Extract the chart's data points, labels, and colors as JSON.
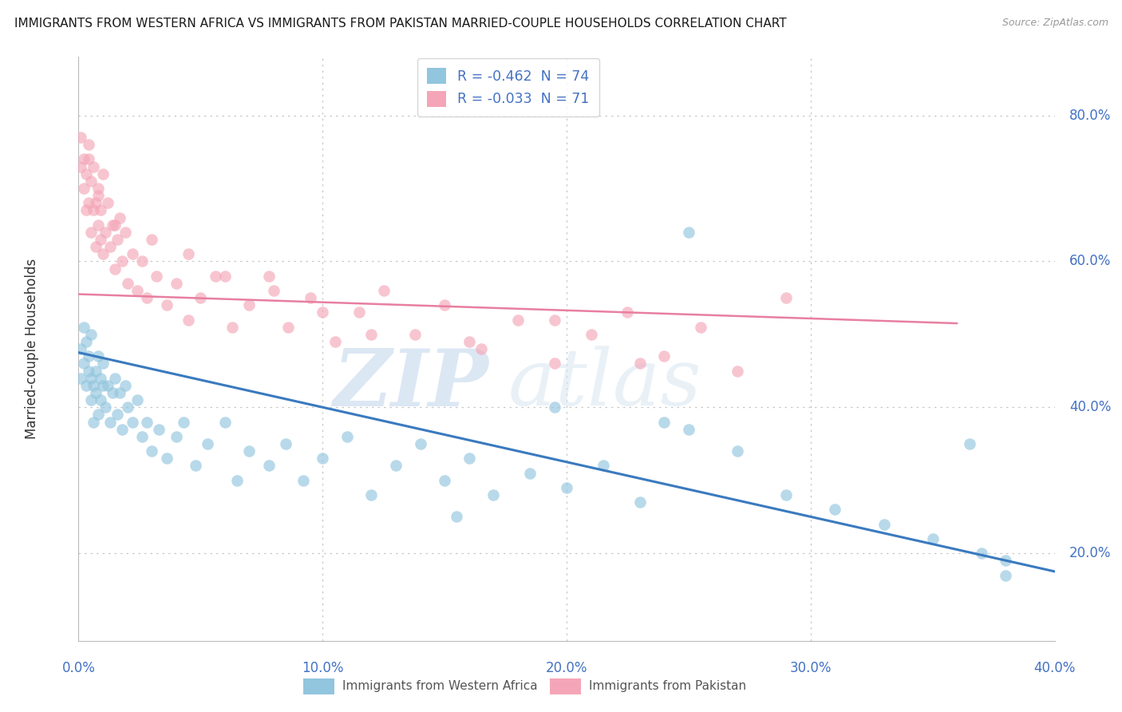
{
  "title": "IMMIGRANTS FROM WESTERN AFRICA VS IMMIGRANTS FROM PAKISTAN MARRIED-COUPLE HOUSEHOLDS CORRELATION CHART",
  "source": "Source: ZipAtlas.com",
  "xlabel_blue": "Immigrants from Western Africa",
  "xlabel_pink": "Immigrants from Pakistan",
  "ylabel": "Married-couple Households",
  "watermark_zip": "ZIP",
  "watermark_atlas": "atlas",
  "legend_blue_R": "-0.462",
  "legend_blue_N": "74",
  "legend_pink_R": "-0.033",
  "legend_pink_N": "71",
  "blue_color": "#92c5de",
  "pink_color": "#f4a6b8",
  "blue_line_color": "#3a7abf",
  "pink_line_color": "#e87fa0",
  "axis_color": "#4472c4",
  "text_color": "#333333",
  "grid_color": "#c8c8c8",
  "xmin": 0.0,
  "xmax": 0.4,
  "ymin": 0.08,
  "ymax": 0.88,
  "blue_x": [
    0.001,
    0.001,
    0.002,
    0.002,
    0.003,
    0.003,
    0.004,
    0.004,
    0.005,
    0.005,
    0.005,
    0.006,
    0.006,
    0.007,
    0.007,
    0.008,
    0.008,
    0.009,
    0.009,
    0.01,
    0.01,
    0.011,
    0.012,
    0.013,
    0.014,
    0.015,
    0.016,
    0.017,
    0.018,
    0.019,
    0.02,
    0.022,
    0.024,
    0.026,
    0.028,
    0.03,
    0.033,
    0.036,
    0.04,
    0.043,
    0.048,
    0.053,
    0.06,
    0.065,
    0.07,
    0.078,
    0.085,
    0.092,
    0.1,
    0.11,
    0.12,
    0.13,
    0.14,
    0.15,
    0.16,
    0.17,
    0.185,
    0.2,
    0.215,
    0.23,
    0.25,
    0.27,
    0.29,
    0.31,
    0.33,
    0.35,
    0.37,
    0.38,
    0.155,
    0.195,
    0.24,
    0.365,
    0.25,
    0.38
  ],
  "blue_y": [
    0.48,
    0.44,
    0.46,
    0.51,
    0.43,
    0.49,
    0.45,
    0.47,
    0.41,
    0.44,
    0.5,
    0.43,
    0.38,
    0.45,
    0.42,
    0.47,
    0.39,
    0.44,
    0.41,
    0.43,
    0.46,
    0.4,
    0.43,
    0.38,
    0.42,
    0.44,
    0.39,
    0.42,
    0.37,
    0.43,
    0.4,
    0.38,
    0.41,
    0.36,
    0.38,
    0.34,
    0.37,
    0.33,
    0.36,
    0.38,
    0.32,
    0.35,
    0.38,
    0.3,
    0.34,
    0.32,
    0.35,
    0.3,
    0.33,
    0.36,
    0.28,
    0.32,
    0.35,
    0.3,
    0.33,
    0.28,
    0.31,
    0.29,
    0.32,
    0.27,
    0.37,
    0.34,
    0.28,
    0.26,
    0.24,
    0.22,
    0.2,
    0.19,
    0.25,
    0.4,
    0.38,
    0.35,
    0.64,
    0.17
  ],
  "pink_x": [
    0.001,
    0.001,
    0.002,
    0.002,
    0.003,
    0.003,
    0.004,
    0.004,
    0.004,
    0.005,
    0.005,
    0.006,
    0.006,
    0.007,
    0.007,
    0.008,
    0.008,
    0.009,
    0.009,
    0.01,
    0.01,
    0.011,
    0.012,
    0.013,
    0.014,
    0.015,
    0.016,
    0.017,
    0.018,
    0.019,
    0.02,
    0.022,
    0.024,
    0.026,
    0.028,
    0.032,
    0.036,
    0.04,
    0.045,
    0.05,
    0.056,
    0.063,
    0.07,
    0.078,
    0.086,
    0.095,
    0.105,
    0.115,
    0.125,
    0.138,
    0.15,
    0.165,
    0.18,
    0.195,
    0.21,
    0.225,
    0.24,
    0.255,
    0.27,
    0.29,
    0.16,
    0.195,
    0.23,
    0.12,
    0.1,
    0.08,
    0.06,
    0.045,
    0.03,
    0.015,
    0.008
  ],
  "pink_y": [
    0.73,
    0.77,
    0.7,
    0.74,
    0.67,
    0.72,
    0.74,
    0.68,
    0.76,
    0.64,
    0.71,
    0.67,
    0.73,
    0.62,
    0.68,
    0.65,
    0.7,
    0.63,
    0.67,
    0.61,
    0.72,
    0.64,
    0.68,
    0.62,
    0.65,
    0.59,
    0.63,
    0.66,
    0.6,
    0.64,
    0.57,
    0.61,
    0.56,
    0.6,
    0.55,
    0.58,
    0.54,
    0.57,
    0.52,
    0.55,
    0.58,
    0.51,
    0.54,
    0.58,
    0.51,
    0.55,
    0.49,
    0.53,
    0.56,
    0.5,
    0.54,
    0.48,
    0.52,
    0.46,
    0.5,
    0.53,
    0.47,
    0.51,
    0.45,
    0.55,
    0.49,
    0.52,
    0.46,
    0.5,
    0.53,
    0.56,
    0.58,
    0.61,
    0.63,
    0.65,
    0.69
  ],
  "blue_trend_x": [
    0.0,
    0.4
  ],
  "blue_trend_y": [
    0.475,
    0.175
  ],
  "pink_trend_x": [
    0.0,
    0.36
  ],
  "pink_trend_y": [
    0.555,
    0.515
  ],
  "yticks": [
    0.2,
    0.4,
    0.6,
    0.8
  ],
  "ytick_labels": [
    "20.0%",
    "40.0%",
    "60.0%",
    "80.0%"
  ],
  "xticks": [
    0.0,
    0.1,
    0.2,
    0.3,
    0.4
  ],
  "xtick_labels": [
    "0.0%",
    "10.0%",
    "20.0%",
    "30.0%",
    "40.0%"
  ]
}
